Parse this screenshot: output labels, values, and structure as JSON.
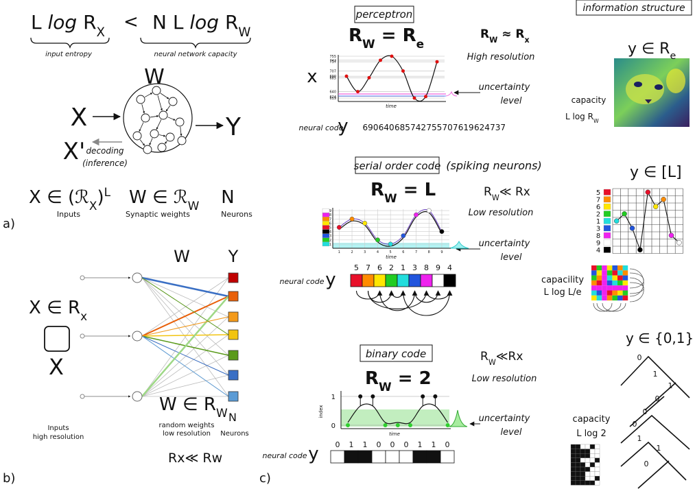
{
  "panel_a": {
    "label": "a)",
    "lhs": [
      "L ",
      "log",
      " R",
      "X"
    ],
    "less": "<",
    "rhs": [
      "N L ",
      "log",
      " R",
      "W"
    ],
    "lhs_brace": "input entropy",
    "rhs_brace": "neural network capacity",
    "network": "W",
    "input": "X",
    "output": "Y",
    "reconstruction": "X'",
    "decoding": [
      "decoding",
      "(inference)"
    ],
    "inputs_set": [
      "X ∈ (",
      "ℛ",
      "X",
      ")",
      "L"
    ],
    "weights_set": [
      "W ∈ ",
      "ℛ",
      "W"
    ],
    "neurons_set": "N",
    "captions": [
      "Inputs",
      "Synaptic weights",
      "Neurons"
    ]
  },
  "panel_b": {
    "label": "b)",
    "weights": "W",
    "outputs": "Y",
    "input_set": [
      "X ∈ R",
      "x"
    ],
    "input": "X",
    "weights_set": [
      "W ∈ R",
      "W"
    ],
    "neurons": "N",
    "weights_caption": [
      "random weights",
      "low resolution"
    ],
    "neurons_caption": "Neurons",
    "inputs_caption": [
      "Inputs",
      "high resolution"
    ],
    "relation": "Rx≪ Rw",
    "output_colors": [
      "#c00000",
      "#e8600a",
      "#f39a1a",
      "#f2c40f",
      "#5a9a1a",
      "#3a6fc4",
      "#5b9bd5"
    ]
  },
  "panel_c": {
    "label": "c)",
    "perceptron": {
      "title": "perceptron",
      "equation": [
        "R",
        "W",
        " = ",
        "R",
        "e"
      ],
      "relation": [
        "R",
        "W",
        " ≈ ",
        "R",
        "x"
      ],
      "resolution": "High resolution",
      "signal": "x",
      "yticks": [
        755,
        742,
        737,
        707,
        690,
        685,
        640,
        624,
        619
      ],
      "time": "time",
      "uncertainty": [
        "uncertainty",
        "level"
      ],
      "code_label": "neural code",
      "code_symbol": "y",
      "code": [
        690,
        640,
        685,
        742,
        755,
        707,
        619,
        624,
        737
      ]
    },
    "serial": {
      "title": "serial order code",
      "subtitle": "(spiking neurons)",
      "equation": [
        "R",
        "W",
        " = ",
        "L"
      ],
      "relation": [
        "R",
        "W",
        "≪ ",
        "R",
        "x"
      ],
      "resolution": "Low resolution",
      "ticks": [
        1,
        2,
        3,
        4,
        5,
        6,
        7,
        8,
        9
      ],
      "time": "time",
      "uncertainty": [
        "uncertainty",
        "level"
      ],
      "code_label": "neural code",
      "code_symbol": "y",
      "code": [
        5,
        7,
        6,
        2,
        1,
        3,
        8,
        9,
        4
      ],
      "colors": [
        "#e8102a",
        "#ff8c00",
        "#ffe600",
        "#22cc22",
        "#22dddd",
        "#2255dd",
        "#ee22ee",
        "#ffffff",
        "#000000"
      ]
    },
    "binary": {
      "title": "binary code",
      "equation": [
        "R",
        "W",
        " = ",
        "2"
      ],
      "relation": [
        "R",
        "W",
        "≪",
        "R",
        "x"
      ],
      "resolution": "Low resolution",
      "axis_label": "index",
      "yticks": [
        1,
        0
      ],
      "time": "time",
      "uncertainty": [
        "uncertainty",
        "level"
      ],
      "code_label": "neural code",
      "code_symbol": "y",
      "code": [
        0,
        1,
        1,
        0,
        0,
        0,
        1,
        1,
        0
      ]
    },
    "information": {
      "title": "information structure",
      "real": [
        "y ∈ R",
        "e"
      ],
      "real_capacity": [
        "capacity",
        "L log R",
        "W"
      ],
      "order": "y ∈ [L]",
      "order_capacity": [
        "capacility",
        "L log L/e"
      ],
      "binary": "y ∈ {0,1}",
      "binary_capacity": [
        "capacity",
        "L log 2"
      ]
    }
  }
}
